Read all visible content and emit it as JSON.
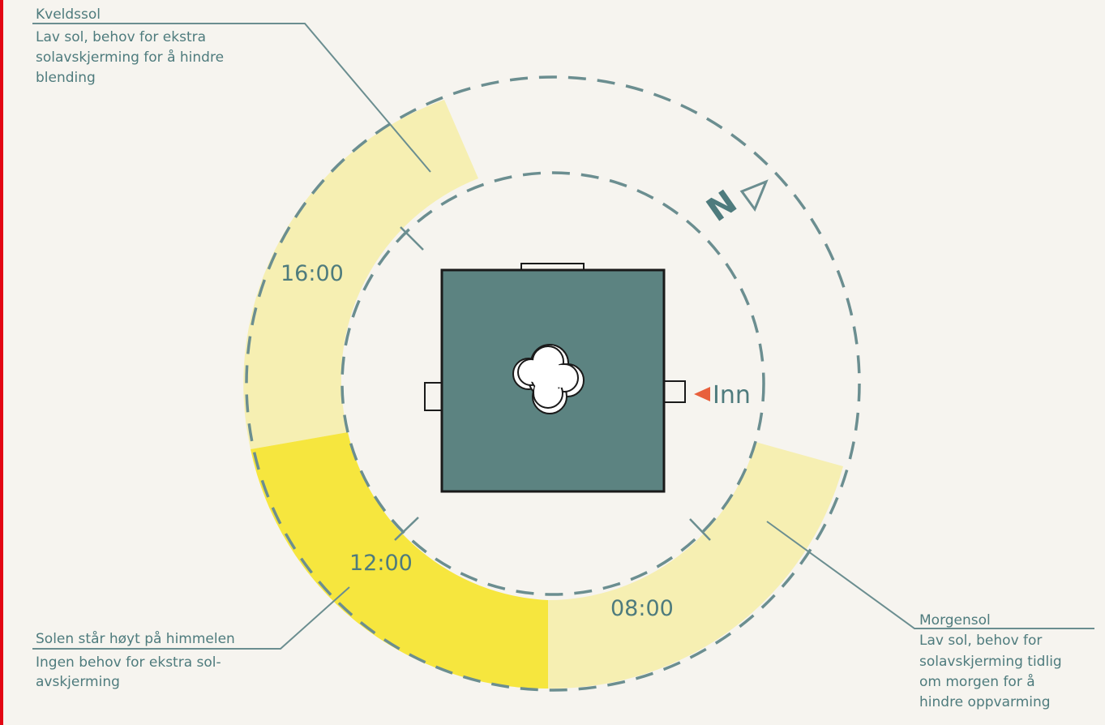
{
  "colors": {
    "background": "#f6f4ef",
    "accent_red_line": "#e30613",
    "teal_line": "#6b8e90",
    "text_teal": "#4e7b7d",
    "pale_yellow": "#f6efb2",
    "bright_yellow": "#f6e63e",
    "house_fill": "#5c8381",
    "entrance_arrow": "#e8603c"
  },
  "labels": {
    "evening": {
      "title": "Kveldssol",
      "lines": [
        "Lav sol, behov for ekstra",
        "solavskjerming for å hindre",
        "blending"
      ]
    },
    "midday": {
      "title": "Solen står høyt på himmelen",
      "lines": [
        "Ingen behov for ekstra sol-",
        "avskjerming"
      ]
    },
    "morning": {
      "title": "Morgensol",
      "lines": [
        "Lav sol, behov for",
        "solavskjerming tidlig",
        "om morgen for å",
        "hindre oppvarming"
      ]
    }
  },
  "times": {
    "t16": "16:00",
    "t12": "12:00",
    "t08": "08:00"
  },
  "compass": {
    "label": "N",
    "icon": "north-arrow-icon"
  },
  "entrance": {
    "label": "Inn",
    "icon": "entrance-arrow-icon"
  },
  "icons": {
    "plant": "plant-icon"
  }
}
